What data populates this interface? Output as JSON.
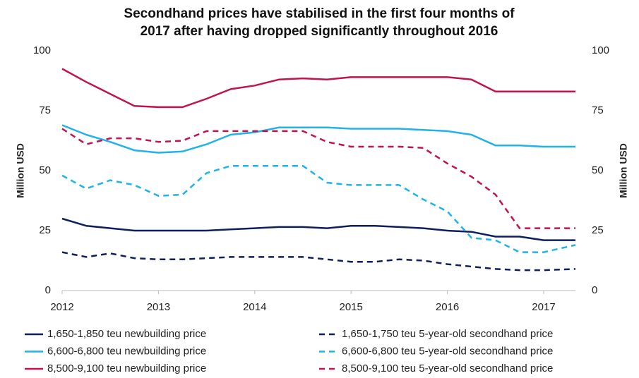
{
  "chart_data": {
    "type": "line",
    "title": [
      "Secondhand prices have stabilised in the first four months of",
      "2017 after having dropped significantly throughout 2016"
    ],
    "ylabel": "Million USD",
    "y2label": "Million USD",
    "x": [
      2012,
      2012.25,
      2012.5,
      2012.75,
      2013,
      2013.25,
      2013.5,
      2013.75,
      2014,
      2014.25,
      2014.5,
      2014.75,
      2015,
      2015.25,
      2015.5,
      2015.75,
      2016,
      2016.25,
      2016.5,
      2016.75,
      2017,
      2017.33
    ],
    "xlim": [
      2012,
      2017.33
    ],
    "xticks": [
      2012,
      2013,
      2014,
      2015,
      2016,
      2017
    ],
    "ylim": [
      0,
      100
    ],
    "yticks": [
      0,
      25,
      50,
      75,
      100
    ],
    "y2lim": [
      0,
      100
    ],
    "y2ticks": [
      0,
      25,
      50,
      75,
      100
    ],
    "grid": false,
    "legend": "bottom",
    "series": [
      {
        "name": "1,650-1,850 teu newbuilding price",
        "color": "#0f1f5a",
        "style": "solid",
        "values": [
          30,
          27,
          26,
          25,
          25,
          25,
          25,
          25.5,
          26,
          26.5,
          26.5,
          26,
          27,
          27,
          26.5,
          26,
          25,
          24.5,
          22.5,
          22.5,
          21,
          21
        ]
      },
      {
        "name": "1,650-1,750 teu 5-year-old secondhand price",
        "color": "#0f1f5a",
        "style": "dashed",
        "values": [
          16,
          14,
          15.5,
          13.5,
          13,
          13,
          13.5,
          14,
          14,
          14,
          14,
          13,
          12,
          12,
          13,
          12.5,
          11,
          10,
          9,
          8.5,
          8.5,
          9
        ]
      },
      {
        "name": "6,600-6,800 teu newbuilding price",
        "color": "#1fb3e8",
        "style": "solid",
        "values": [
          69,
          65,
          62,
          58.5,
          57.5,
          58,
          61,
          65,
          66,
          68,
          68,
          68,
          67.5,
          67.5,
          67.5,
          67,
          66.5,
          65,
          60.5,
          60.5,
          60,
          60
        ]
      },
      {
        "name": "6,600-6,800 teu 5-year-old secondhand price",
        "color": "#1fb3e8",
        "style": "dashed",
        "values": [
          48,
          42.5,
          46,
          44,
          39.5,
          40,
          49,
          52,
          52,
          52,
          52,
          45,
          44,
          44,
          44,
          38,
          33,
          22,
          21,
          16,
          16,
          19
        ]
      },
      {
        "name": "8,500-9,100 teu newbuilding price",
        "color": "#c0134f",
        "style": "solid",
        "values": [
          92.5,
          87,
          82,
          77,
          76.5,
          76.5,
          80,
          84,
          85.5,
          88,
          88.5,
          88,
          89,
          89,
          89,
          89,
          89,
          88,
          83,
          83,
          83,
          83
        ]
      },
      {
        "name": "8,500-9,100 teu 5-year-old secondhand price",
        "color": "#c0134f",
        "style": "dashed",
        "values": [
          67.5,
          61,
          63.5,
          63.5,
          62,
          62.5,
          66.5,
          66.5,
          66.5,
          66.5,
          66.5,
          62,
          60,
          60,
          60,
          59.5,
          53,
          47.5,
          40,
          26,
          26,
          26
        ]
      }
    ]
  }
}
